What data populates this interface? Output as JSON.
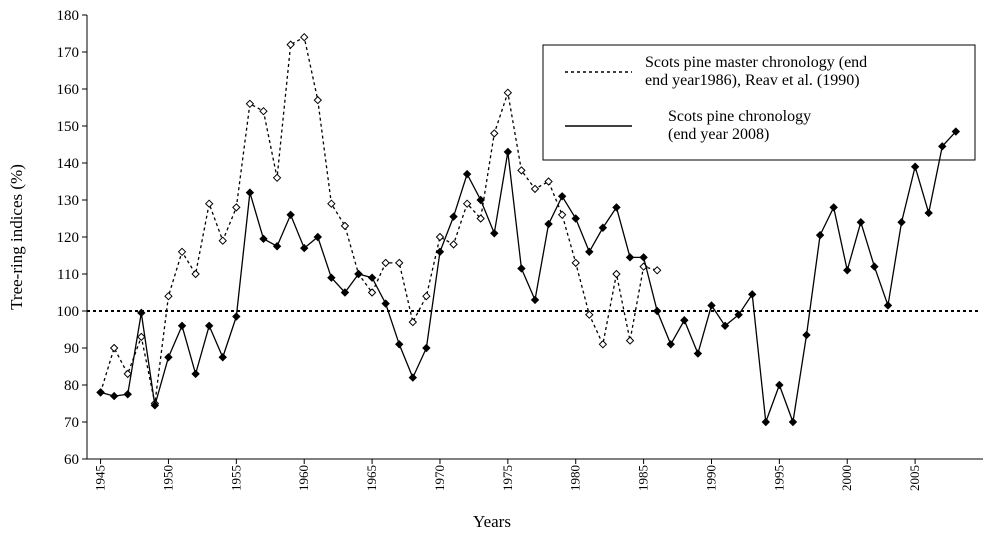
{
  "chart_data": {
    "type": "line",
    "xlabel": "Years",
    "ylabel": "Tree-ring indices (%)",
    "x": [
      1945,
      1946,
      1947,
      1948,
      1949,
      1950,
      1951,
      1952,
      1953,
      1954,
      1955,
      1956,
      1957,
      1958,
      1959,
      1960,
      1961,
      1962,
      1963,
      1964,
      1965,
      1966,
      1967,
      1968,
      1969,
      1970,
      1971,
      1972,
      1973,
      1974,
      1975,
      1976,
      1977,
      1978,
      1979,
      1980,
      1981,
      1982,
      1983,
      1984,
      1985,
      1986,
      1987,
      1988,
      1989,
      1990,
      1991,
      1992,
      1993,
      1994,
      1995,
      1996,
      1997,
      1998,
      1999,
      2000,
      2001,
      2002,
      2003,
      2004,
      2005,
      2006,
      2007,
      2008
    ],
    "series": [
      {
        "name": "Scots pine master chronology (end\nend year1986), Reav et al. (1990)",
        "color": "#000000",
        "dashed": true,
        "marker": "open-diamond",
        "values": [
          78,
          90,
          83,
          93,
          75,
          104,
          116,
          110,
          129,
          119,
          128,
          156,
          154,
          136,
          172,
          174,
          157,
          129,
          123,
          110,
          105,
          113,
          113,
          97,
          104,
          120,
          118,
          129,
          125,
          148,
          159,
          138,
          133,
          135,
          126,
          113,
          99,
          91,
          110,
          92,
          112,
          111,
          null,
          null,
          null,
          null,
          null,
          null,
          null,
          null,
          null,
          null,
          null,
          null,
          null,
          null,
          null,
          null,
          null,
          null,
          null,
          null,
          null,
          null
        ]
      },
      {
        "name": "Scots pine chronology\n(end year 2008)",
        "color": "#000000",
        "dashed": false,
        "marker": "filled-diamond",
        "values": [
          78,
          77,
          77.5,
          99.5,
          74.5,
          87.5,
          96,
          83,
          96,
          87.5,
          98.5,
          132,
          119.5,
          117.5,
          126,
          117,
          120,
          109,
          105,
          110,
          109,
          102,
          91,
          82,
          90,
          116,
          125.5,
          137,
          130,
          121,
          143,
          111.5,
          103,
          123.5,
          131,
          125,
          116,
          122.5,
          128,
          114.5,
          114.5,
          100,
          91,
          97.5,
          88.5,
          101.5,
          96,
          99,
          104.5,
          70,
          80,
          70,
          93.5,
          120.5,
          128,
          111,
          124,
          112,
          101.5,
          124,
          139,
          126.5,
          144.5,
          148.5
        ]
      }
    ],
    "reference_line": 100,
    "xlim": [
      1944,
      2010
    ],
    "xticks": [
      1945,
      1950,
      1955,
      1960,
      1965,
      1970,
      1975,
      1980,
      1985,
      1990,
      1995,
      2000,
      2005
    ],
    "ylim": [
      60,
      180
    ],
    "yticks": [
      60,
      70,
      80,
      90,
      100,
      110,
      120,
      130,
      140,
      150,
      160,
      170,
      180
    ]
  }
}
